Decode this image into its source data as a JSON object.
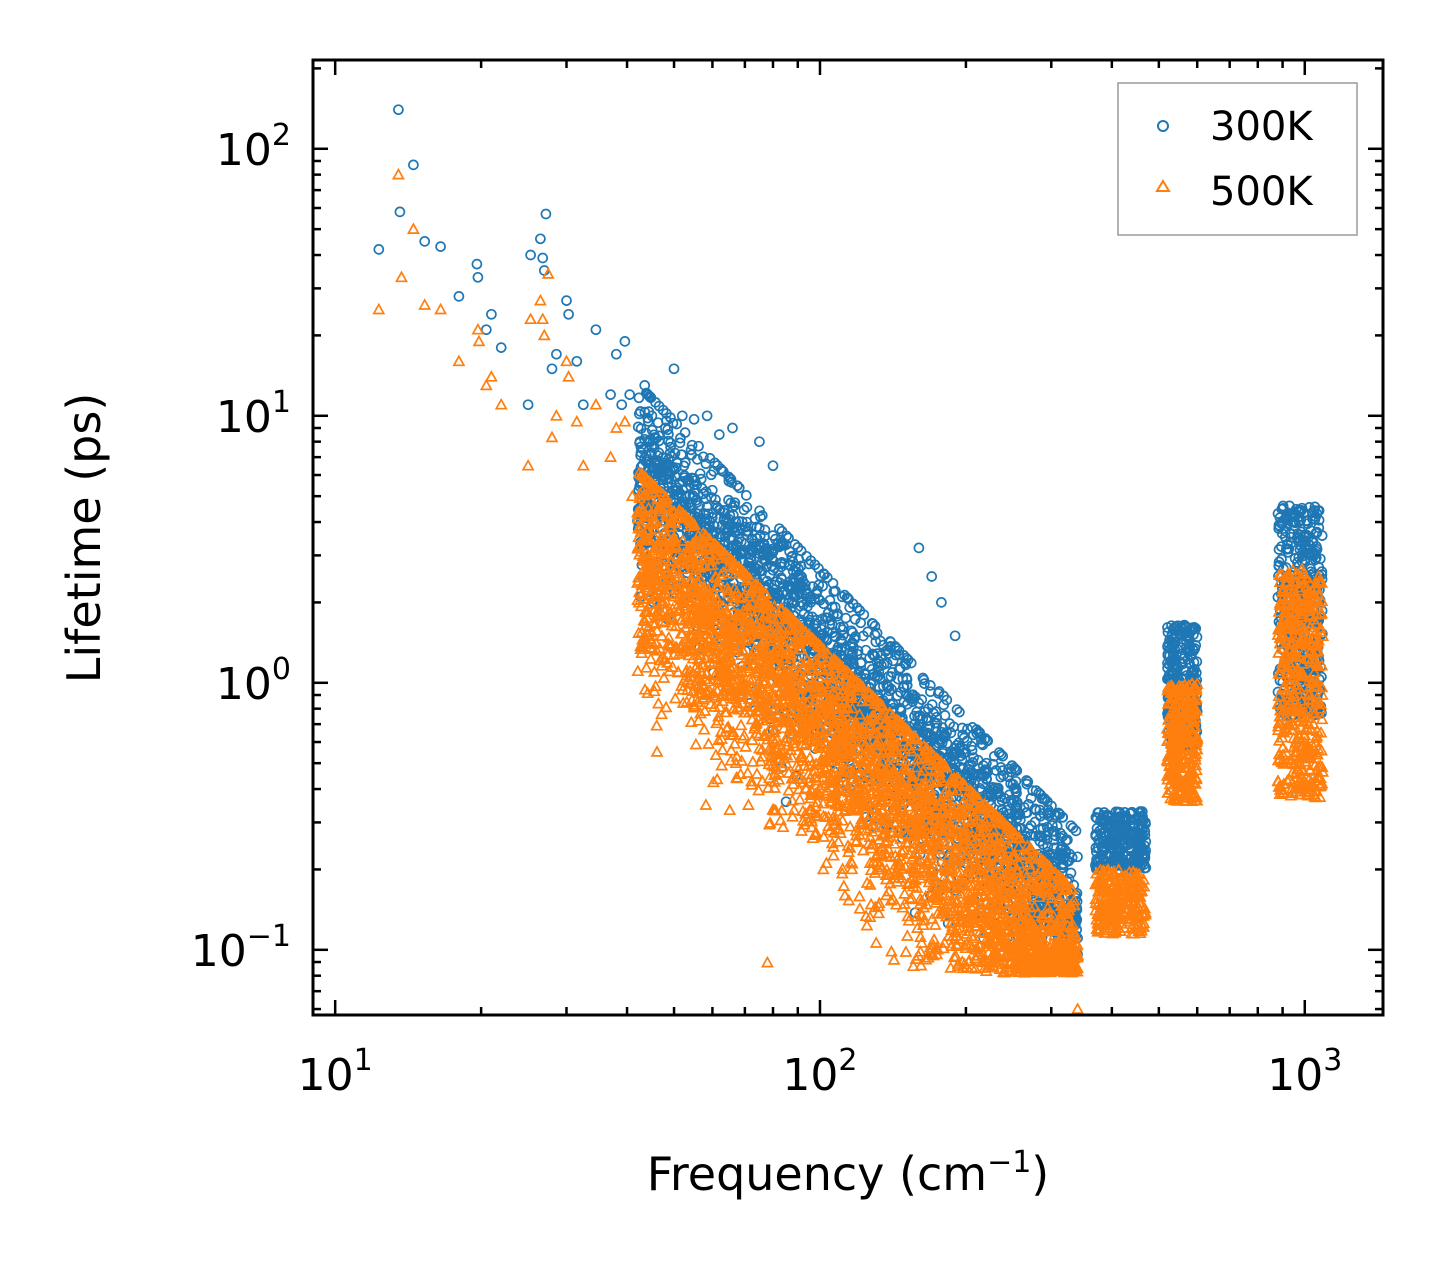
{
  "chart_data": {
    "type": "scatter",
    "title": "",
    "xlabel": "Frequency (cm",
    "xlabel_sup": "−1",
    "xlabel_tail": ")",
    "ylabel": "Lifetime (ps)",
    "xscale": "log",
    "yscale": "log",
    "xlim": [
      9,
      1450
    ],
    "ylim": [
      0.057,
      215
    ],
    "x_ticks": [
      {
        "value": 10,
        "base": "10",
        "exp": "1"
      },
      {
        "value": 100,
        "base": "10",
        "exp": "2"
      },
      {
        "value": 1000,
        "base": "10",
        "exp": "3"
      }
    ],
    "y_ticks": [
      {
        "value": 0.1,
        "base": "10",
        "exp": "−1"
      },
      {
        "value": 1,
        "base": "10",
        "exp": "0"
      },
      {
        "value": 10,
        "base": "10",
        "exp": "1"
      },
      {
        "value": 100,
        "base": "10",
        "exp": "2"
      }
    ],
    "legend_position": "top-right",
    "colors": {
      "s300": "#1f77b4",
      "s500": "#ff7f0e"
    },
    "series": [
      {
        "name": "300K",
        "marker": "circle",
        "color": "#1f77b4",
        "points": [
          [
            12.3,
            42
          ],
          [
            13.5,
            140
          ],
          [
            13.6,
            58
          ],
          [
            14.5,
            87
          ],
          [
            15.3,
            45
          ],
          [
            16.5,
            43
          ],
          [
            18.0,
            28
          ],
          [
            19.6,
            37
          ],
          [
            19.7,
            33
          ],
          [
            20.5,
            21
          ],
          [
            21.0,
            24
          ],
          [
            22.0,
            18
          ],
          [
            25.0,
            11
          ],
          [
            25.3,
            40
          ],
          [
            26.5,
            46
          ],
          [
            26.8,
            39
          ],
          [
            27.0,
            35
          ],
          [
            27.2,
            57
          ],
          [
            28.0,
            15
          ],
          [
            28.6,
            17
          ],
          [
            30.0,
            27
          ],
          [
            30.3,
            24
          ],
          [
            31.5,
            16
          ],
          [
            32.5,
            11
          ],
          [
            34.5,
            21
          ],
          [
            37.0,
            12
          ],
          [
            38.0,
            17
          ],
          [
            39.0,
            11
          ],
          [
            39.6,
            19
          ],
          [
            40.5,
            12
          ],
          [
            43.5,
            13
          ],
          [
            45.0,
            10
          ],
          [
            48.0,
            9
          ],
          [
            50.0,
            15
          ],
          [
            52.0,
            10
          ],
          [
            55.0,
            9.7
          ],
          [
            58.5,
            10
          ],
          [
            62.0,
            8.5
          ],
          [
            66.0,
            9.0
          ],
          [
            75.0,
            8.0
          ],
          [
            80.0,
            6.5
          ],
          [
            160.0,
            3.2
          ],
          [
            170.0,
            2.5
          ],
          [
            178.0,
            2.0
          ],
          [
            190.0,
            1.5
          ],
          [
            335.0,
            0.145
          ],
          [
            340.0,
            0.096
          ]
        ]
      },
      {
        "name": "500K",
        "marker": "triangle",
        "color": "#ff7f0e",
        "points": [
          [
            12.3,
            25
          ],
          [
            13.5,
            80
          ],
          [
            13.7,
            33
          ],
          [
            14.5,
            50
          ],
          [
            15.3,
            26
          ],
          [
            16.5,
            25
          ],
          [
            18.0,
            16
          ],
          [
            19.7,
            21
          ],
          [
            19.8,
            19
          ],
          [
            20.5,
            13
          ],
          [
            21.0,
            14
          ],
          [
            22.0,
            11
          ],
          [
            25.0,
            6.5
          ],
          [
            25.3,
            23
          ],
          [
            26.5,
            27
          ],
          [
            26.8,
            23
          ],
          [
            27.0,
            20
          ],
          [
            27.5,
            34
          ],
          [
            28.0,
            8.3
          ],
          [
            28.6,
            10
          ],
          [
            30.0,
            16
          ],
          [
            30.3,
            14
          ],
          [
            31.5,
            9.5
          ],
          [
            32.5,
            6.5
          ],
          [
            34.5,
            11
          ],
          [
            37.0,
            7.0
          ],
          [
            38.0,
            9.0
          ],
          [
            39.6,
            9.5
          ],
          [
            41.0,
            5.0
          ],
          [
            45.0,
            5.3
          ],
          [
            48.0,
            4.5
          ],
          [
            50.0,
            3.5
          ],
          [
            180.0,
            0.148
          ],
          [
            185.0,
            0.2
          ],
          [
            340.0,
            0.06
          ]
        ]
      }
    ],
    "dense_bands": [
      {
        "series": "300K",
        "x_range": [
          42,
          340
        ],
        "center_at_x_start": 6.3,
        "slope": -1.85,
        "spread_decades": 0.18,
        "count": 2600,
        "min_y": 0.11
      },
      {
        "series": "500K",
        "x_range": [
          42,
          340
        ],
        "center_at_x_start": 3.0,
        "slope": -1.75,
        "spread_decades": 0.22,
        "count": 3400,
        "min_y": 0.082
      },
      {
        "series": "300K",
        "x_range": [
          370,
          470
        ],
        "y_range": [
          0.2,
          0.33
        ],
        "count": 260
      },
      {
        "series": "500K",
        "x_range": [
          370,
          470
        ],
        "y_range": [
          0.115,
          0.2
        ],
        "count": 240
      },
      {
        "series": "300K",
        "x_range": [
          520,
          600
        ],
        "y_range": [
          0.58,
          1.65
        ],
        "count": 300
      },
      {
        "series": "500K",
        "x_range": [
          520,
          600
        ],
        "y_range": [
          0.36,
          1.0
        ],
        "count": 300
      },
      {
        "series": "300K",
        "x_range": [
          880,
          1090
        ],
        "y_range": [
          0.75,
          4.6
        ],
        "count": 420
      },
      {
        "series": "500K",
        "x_range": [
          880,
          1090
        ],
        "y_range": [
          0.37,
          2.7
        ],
        "count": 420
      }
    ]
  },
  "legend": {
    "entries": [
      {
        "label": "300K",
        "marker": "circle",
        "color": "#1f77b4"
      },
      {
        "label": "500K",
        "marker": "triangle",
        "color": "#ff7f0e"
      }
    ]
  }
}
